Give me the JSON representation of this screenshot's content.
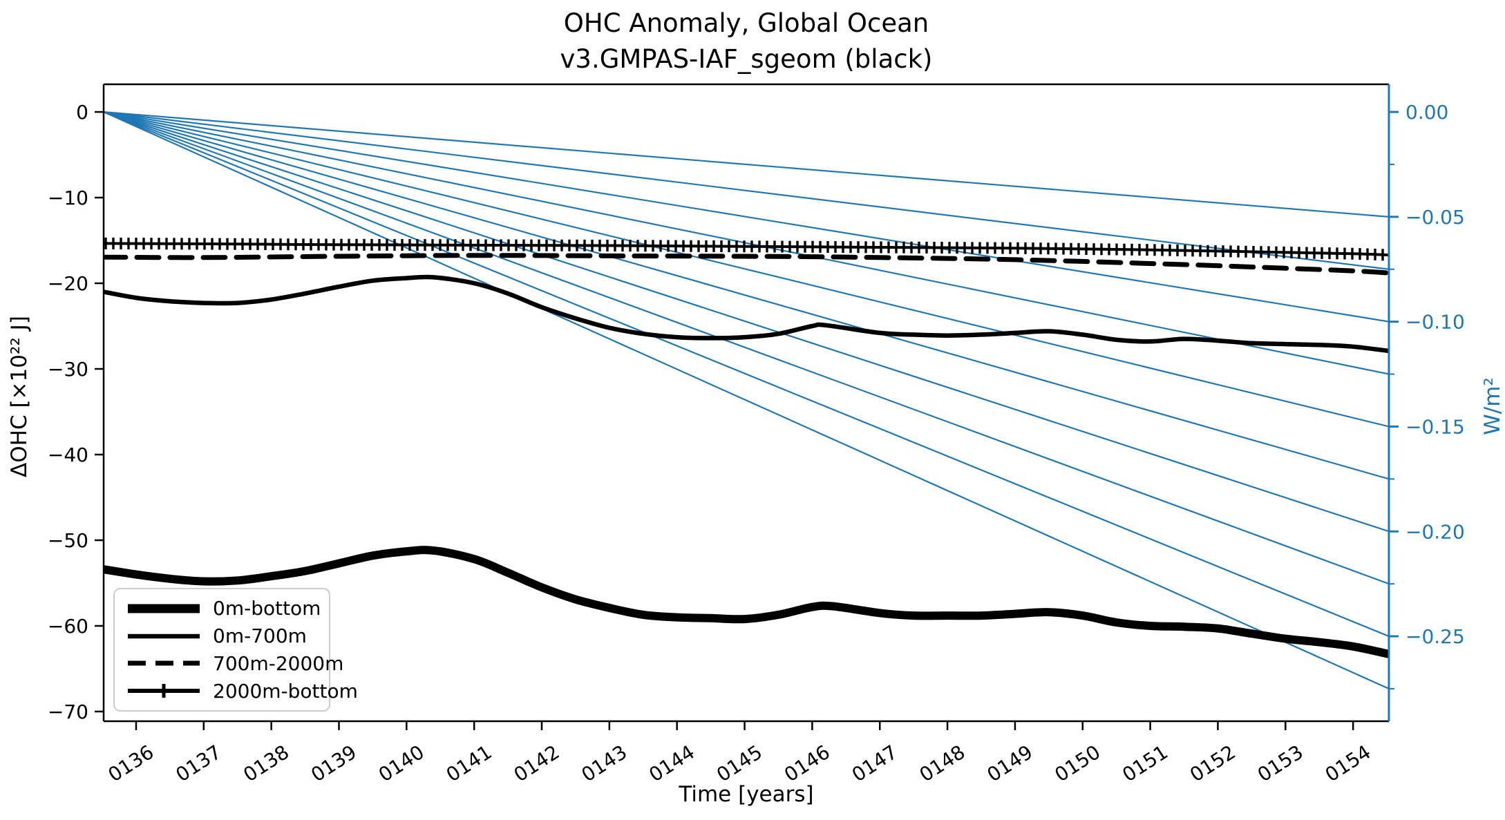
{
  "title": {
    "line1": "OHC Anomaly, Global Ocean",
    "line2": "v3.GMPAS-IAF_sgeom (black)"
  },
  "colors": {
    "black_series": "#000000",
    "blue_axis": "#1f77b4",
    "legend_border": "#cccccc"
  },
  "legend": {
    "items": [
      {
        "label": "0m-bottom",
        "style": "solid-thick"
      },
      {
        "label": "0m-700m",
        "style": "solid"
      },
      {
        "label": "700m-2000m",
        "style": "dashed"
      },
      {
        "label": "2000m-bottom",
        "style": "solid-plus-marker"
      }
    ]
  },
  "chart_data": {
    "type": "line",
    "title": "OHC Anomaly, Global Ocean v3.GMPAS-IAF_sgeom (black)",
    "xlabel": "Time [years]",
    "ylabel_left": "ΔOHC [×10²² J]",
    "ylabel_right": "W/m²",
    "grid": false,
    "legend_position": "lower left",
    "axes": {
      "x": {
        "range": [
          135.52,
          154.53
        ],
        "tick_years": [
          136,
          137,
          138,
          139,
          140,
          141,
          142,
          143,
          144,
          145,
          146,
          147,
          148,
          149,
          150,
          151,
          152,
          153,
          154
        ],
        "tick_labels": [
          "0136",
          "0137",
          "0138",
          "0139",
          "0140",
          "0141",
          "0142",
          "0143",
          "0144",
          "0145",
          "0146",
          "0147",
          "0148",
          "0149",
          "0150",
          "0151",
          "0152",
          "0153",
          "0154"
        ],
        "tick_label_rotation_deg": -33
      },
      "y_left": {
        "range": [
          3.23,
          -71.13
        ],
        "tick_values": [
          0,
          -10,
          -20,
          -30,
          -40,
          -50,
          -60,
          -70
        ],
        "tick_labels": [
          "0",
          "−10",
          "−20",
          "−30",
          "−40",
          "−50",
          "−60",
          "−70"
        ]
      },
      "y_right": {
        "range": [
          0.0132,
          -0.2905
        ],
        "tick_values": [
          0,
          -0.05,
          -0.1,
          -0.15,
          -0.2,
          -0.25
        ],
        "tick_labels": [
          "0.00",
          "−0.05",
          "−0.10",
          "−0.15",
          "−0.20",
          "−0.25"
        ],
        "minor_tick_values": [
          -0.025,
          -0.075,
          -0.125,
          -0.175,
          -0.225,
          -0.275
        ],
        "color": "#1f77b4"
      }
    },
    "reference_fan": {
      "description": "thin straight lines radiating from (x_min, OHC=0) to the right axis, one per constant-flux value",
      "origin": {
        "year": 135.52,
        "ohc": 0
      },
      "end_year": 154.53,
      "flux_values_wm2": [
        -0.05,
        -0.075,
        -0.1,
        -0.125,
        -0.15,
        -0.175,
        -0.2,
        -0.225,
        -0.25,
        -0.275
      ],
      "color": "#1f77b4",
      "width": 2.2
    },
    "series": [
      {
        "name": "0m-bottom",
        "style": "solid",
        "width": 12,
        "color": "#000000",
        "points": [
          [
            135.52,
            -53.4
          ],
          [
            136,
            -54.0
          ],
          [
            136.5,
            -54.5
          ],
          [
            137,
            -54.8
          ],
          [
            137.5,
            -54.7
          ],
          [
            138,
            -54.2
          ],
          [
            138.5,
            -53.6
          ],
          [
            139,
            -52.7
          ],
          [
            139.5,
            -51.8
          ],
          [
            140,
            -51.3
          ],
          [
            140.4,
            -51.2
          ],
          [
            141,
            -52.2
          ],
          [
            141.5,
            -53.8
          ],
          [
            142,
            -55.5
          ],
          [
            142.5,
            -56.9
          ],
          [
            143,
            -57.9
          ],
          [
            143.5,
            -58.7
          ],
          [
            144,
            -59.0
          ],
          [
            144.5,
            -59.1
          ],
          [
            145,
            -59.2
          ],
          [
            145.5,
            -58.7
          ],
          [
            146,
            -57.8
          ],
          [
            146.3,
            -57.7
          ],
          [
            147,
            -58.5
          ],
          [
            147.5,
            -58.8
          ],
          [
            148,
            -58.8
          ],
          [
            148.5,
            -58.8
          ],
          [
            149,
            -58.6
          ],
          [
            149.5,
            -58.4
          ],
          [
            150,
            -58.8
          ],
          [
            150.5,
            -59.6
          ],
          [
            151,
            -60.0
          ],
          [
            151.5,
            -60.1
          ],
          [
            152,
            -60.3
          ],
          [
            152.5,
            -60.9
          ],
          [
            153,
            -61.5
          ],
          [
            153.5,
            -61.9
          ],
          [
            154,
            -62.4
          ],
          [
            154.53,
            -63.3
          ]
        ]
      },
      {
        "name": "0m-700m",
        "style": "solid",
        "width": 6.5,
        "color": "#000000",
        "points": [
          [
            135.52,
            -21.0
          ],
          [
            136,
            -21.7
          ],
          [
            136.5,
            -22.1
          ],
          [
            137,
            -22.3
          ],
          [
            137.5,
            -22.3
          ],
          [
            138,
            -21.9
          ],
          [
            138.5,
            -21.2
          ],
          [
            139,
            -20.4
          ],
          [
            139.5,
            -19.7
          ],
          [
            140,
            -19.4
          ],
          [
            140.4,
            -19.3
          ],
          [
            141,
            -20.0
          ],
          [
            141.5,
            -21.2
          ],
          [
            142,
            -22.8
          ],
          [
            142.5,
            -24.1
          ],
          [
            143,
            -25.2
          ],
          [
            143.5,
            -25.9
          ],
          [
            144,
            -26.3
          ],
          [
            144.5,
            -26.4
          ],
          [
            145,
            -26.3
          ],
          [
            145.5,
            -25.9
          ],
          [
            146,
            -25.0
          ],
          [
            146.2,
            -24.9
          ],
          [
            147,
            -25.8
          ],
          [
            147.5,
            -26.0
          ],
          [
            148,
            -26.1
          ],
          [
            148.5,
            -26.0
          ],
          [
            149,
            -25.8
          ],
          [
            149.5,
            -25.6
          ],
          [
            150,
            -26.0
          ],
          [
            150.5,
            -26.6
          ],
          [
            151,
            -26.8
          ],
          [
            151.5,
            -26.5
          ],
          [
            152,
            -26.7
          ],
          [
            152.5,
            -27.0
          ],
          [
            153,
            -27.1
          ],
          [
            153.5,
            -27.2
          ],
          [
            154,
            -27.4
          ],
          [
            154.53,
            -27.9
          ]
        ]
      },
      {
        "name": "700m-2000m",
        "style": "dashed",
        "width": 7,
        "dash": [
          32,
          16
        ],
        "color": "#000000",
        "points": [
          [
            135.52,
            -16.95
          ],
          [
            137,
            -17.0
          ],
          [
            139,
            -16.85
          ],
          [
            141,
            -16.75
          ],
          [
            143,
            -16.8
          ],
          [
            145,
            -16.85
          ],
          [
            146,
            -16.9
          ],
          [
            147,
            -17.0
          ],
          [
            148,
            -17.1
          ],
          [
            149,
            -17.25
          ],
          [
            150,
            -17.45
          ],
          [
            151,
            -17.7
          ],
          [
            152,
            -17.95
          ],
          [
            153,
            -18.25
          ],
          [
            154,
            -18.55
          ],
          [
            154.53,
            -18.8
          ]
        ]
      },
      {
        "name": "2000m-bottom",
        "style": "solid-plus-marker",
        "width": 4,
        "marker_spacing_px": 11,
        "marker_size_px": 17,
        "color": "#000000",
        "points": [
          [
            135.52,
            -15.35
          ],
          [
            137,
            -15.4
          ],
          [
            139,
            -15.5
          ],
          [
            141,
            -15.55
          ],
          [
            143,
            -15.6
          ],
          [
            145,
            -15.7
          ],
          [
            147,
            -15.8
          ],
          [
            149,
            -15.9
          ],
          [
            150,
            -16.0
          ],
          [
            151,
            -16.1
          ],
          [
            152,
            -16.25
          ],
          [
            153,
            -16.4
          ],
          [
            154,
            -16.55
          ],
          [
            154.53,
            -16.7
          ]
        ]
      }
    ]
  }
}
